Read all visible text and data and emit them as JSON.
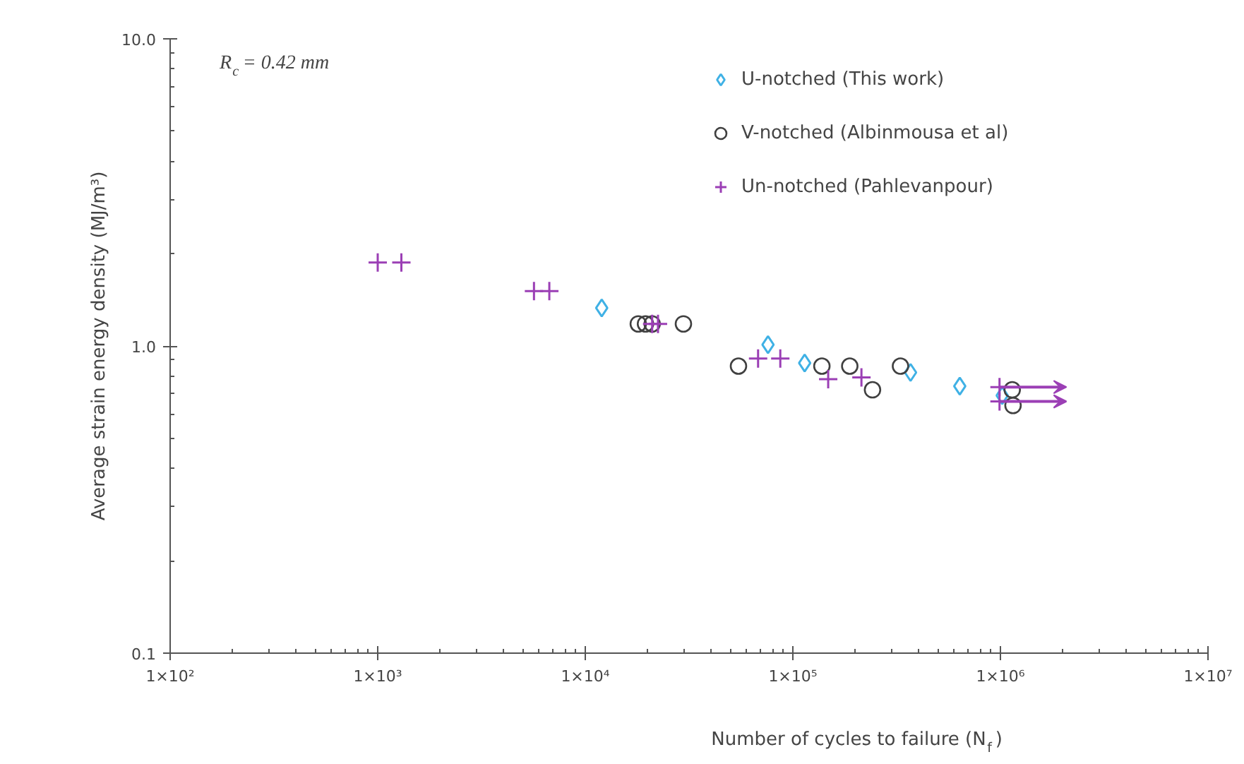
{
  "chart_data": {
    "type": "scatter",
    "xlabel": "Number of cycles to failure (N$_{f}$)",
    "ylabel": "Average strain energy density (MJ/m³)",
    "log": "xy",
    "grid": false,
    "legend": "top right",
    "xlim": [
      100,
      10000000
    ],
    "xticks": [
      {
        "value": 100,
        "label": "1×10²"
      },
      {
        "value": 1000,
        "label": "1×10³"
      },
      {
        "value": 10000,
        "label": "1×10⁴"
      },
      {
        "value": 100000,
        "label": "1×10⁵"
      },
      {
        "value": 1000000,
        "label": "1×10⁶"
      },
      {
        "value": 10000000,
        "label": "1×10⁷"
      }
    ],
    "ylim": [
      0.1,
      10
    ],
    "yticks": [
      {
        "value": 0.1,
        "label": "0.1"
      },
      {
        "value": 1,
        "label": "1.0"
      },
      {
        "value": 10,
        "label": "10.0"
      }
    ],
    "annotations": [
      "R$_{c}$ = 0.42 mm"
    ],
    "series": [
      {
        "name": "U-notched (This work)",
        "color": "#3fb1e5",
        "marker": "diamond",
        "x": [
          12000,
          75900,
          114000,
          369000,
          637000,
          1020000
        ],
        "values": [
          1.33,
          1.01,
          0.88,
          0.82,
          0.74,
          0.69
        ]
      },
      {
        "name": "V-notched (Albinmousa et al)",
        "color": "#404040",
        "marker": "circle",
        "x": [
          18000,
          19500,
          21000,
          29700,
          54700,
          138000,
          188000,
          242000,
          330000,
          1140000,
          1150000
        ],
        "values": [
          1.18,
          1.18,
          1.18,
          1.18,
          0.86,
          0.86,
          0.86,
          0.72,
          0.86,
          0.72,
          0.64
        ]
      },
      {
        "name": "Un-notched (Pahlevanpour)",
        "color": "#9b3fb5",
        "marker": "cross",
        "x": [
          1000,
          1300,
          5660,
          6710,
          21000,
          22400,
          68000,
          87000,
          148000,
          214000,
          990000,
          990000
        ],
        "values": [
          1.87,
          1.87,
          1.51,
          1.51,
          1.18,
          1.18,
          0.91,
          0.91,
          0.78,
          0.79,
          0.735,
          0.66
        ]
      }
    ]
  }
}
